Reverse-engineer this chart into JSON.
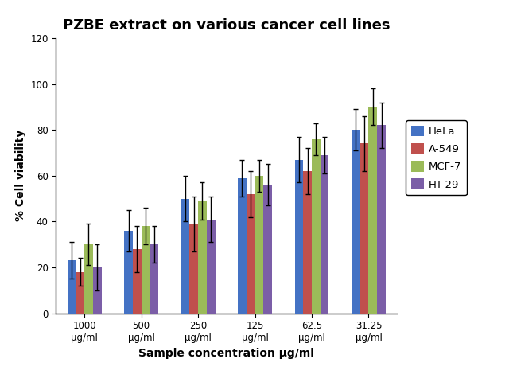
{
  "title": "PZBE extract on various cancer cell lines",
  "xlabel": "Sample concentration μg/ml",
  "ylabel": "% Cell viability",
  "categories": [
    "1000\nμg/ml",
    "500\nμg/ml",
    "250\nμg/ml",
    "125\nμg/ml",
    "62.5\nμg/ml",
    "31.25\nμg/ml"
  ],
  "series": {
    "HeLa": [
      23,
      36,
      50,
      59,
      67,
      80
    ],
    "A-549": [
      18,
      28,
      39,
      52,
      62,
      74
    ],
    "MCF-7": [
      30,
      38,
      49,
      60,
      76,
      90
    ],
    "HT-29": [
      20,
      30,
      41,
      56,
      69,
      82
    ]
  },
  "errors": {
    "HeLa": [
      8,
      9,
      10,
      8,
      10,
      9
    ],
    "A-549": [
      6,
      10,
      12,
      10,
      10,
      12
    ],
    "MCF-7": [
      9,
      8,
      8,
      7,
      7,
      8
    ],
    "HT-29": [
      10,
      8,
      10,
      9,
      8,
      10
    ]
  },
  "colors": {
    "HeLa": "#4472C4",
    "A-549": "#C0504D",
    "MCF-7": "#9BBB59",
    "HT-29": "#7B5EA7"
  },
  "ylim": [
    0,
    120
  ],
  "yticks": [
    0,
    20,
    40,
    60,
    80,
    100,
    120
  ],
  "figure_facecolor": "#FFFFFF",
  "axes_facecolor": "#FFFFFF",
  "bar_width": 0.15,
  "title_fontsize": 13,
  "axis_label_fontsize": 10,
  "tick_fontsize": 8.5,
  "legend_fontsize": 9.5
}
